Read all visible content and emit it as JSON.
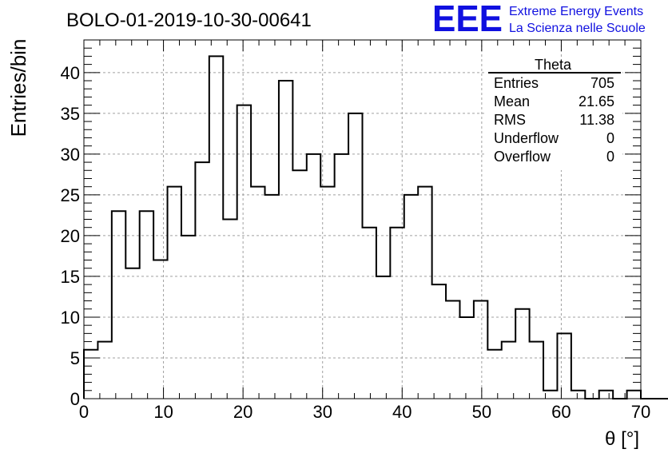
{
  "chart_data": {
    "type": "histogram",
    "title": "BOLO-01-2019-10-30-00641",
    "xlabel": "θ [°]",
    "ylabel": "Entries/bin",
    "xlim": [
      0,
      70
    ],
    "ylim": [
      0,
      44
    ],
    "bin_width": 1.75,
    "bin_edges_start": 0,
    "x_ticks": [
      0,
      10,
      20,
      30,
      40,
      50,
      60,
      70
    ],
    "y_ticks": [
      0,
      5,
      10,
      15,
      20,
      25,
      30,
      35,
      40
    ],
    "grid": true,
    "counts": [
      6,
      7,
      23,
      16,
      23,
      17,
      26,
      20,
      29,
      42,
      22,
      36,
      26,
      25,
      39,
      28,
      30,
      26,
      30,
      35,
      21,
      15,
      21,
      25,
      26,
      14,
      12,
      10,
      12,
      6,
      7,
      11,
      7,
      1,
      8,
      1,
      0,
      1,
      0,
      1,
      0,
      0,
      0,
      0,
      0,
      0,
      0,
      0,
      0,
      0
    ],
    "stats_box": {
      "title": "Theta",
      "rows": [
        {
          "label": "Entries",
          "value": "705"
        },
        {
          "label": "Mean",
          "value": "21.65"
        },
        {
          "label": "RMS",
          "value": "11.38"
        },
        {
          "label": "Underflow",
          "value": "0"
        },
        {
          "label": "Overflow",
          "value": "0"
        }
      ],
      "placement": "top-right"
    }
  },
  "logo": {
    "mark": "EEE",
    "line1": "Extreme Energy Events",
    "line2": "La Scienza nelle Scuole",
    "color": "#1010e0"
  }
}
